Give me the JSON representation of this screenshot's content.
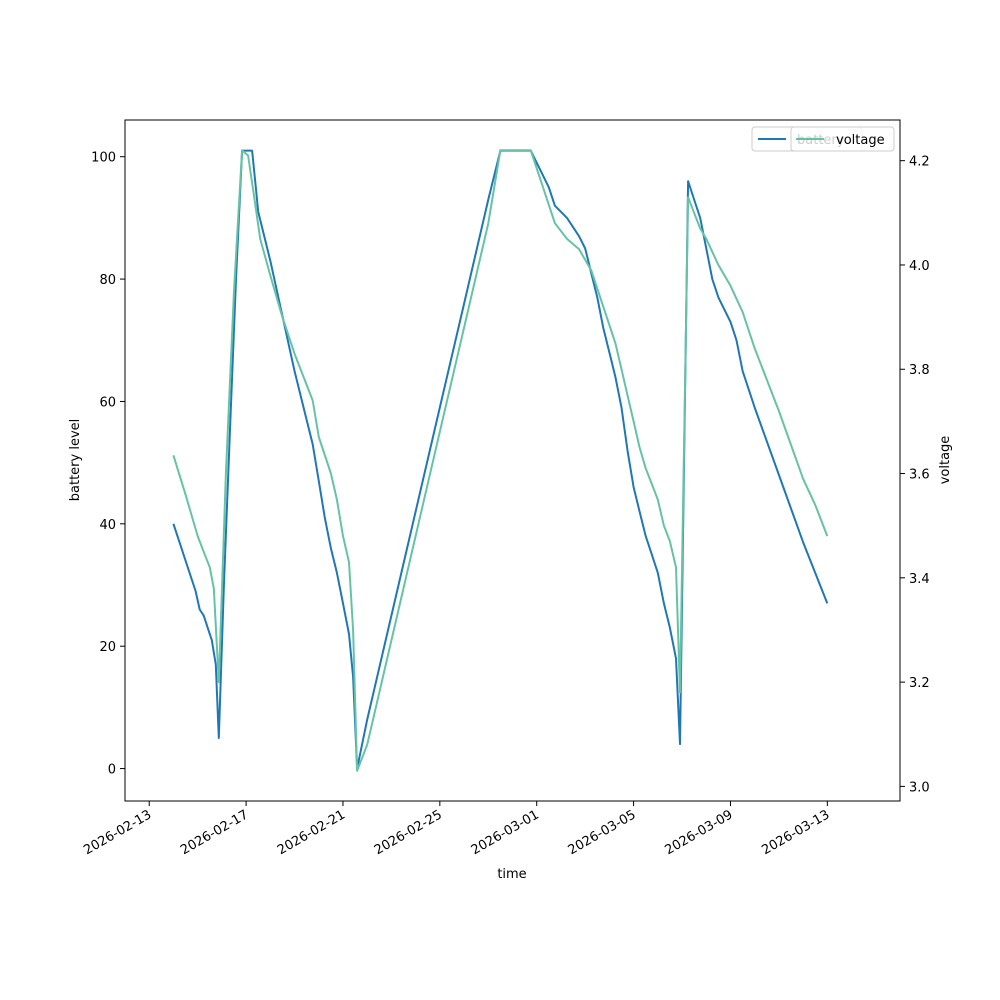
{
  "chart_data": {
    "type": "line",
    "xlabel": "time",
    "ylabel": "battery level",
    "y2label": "voltage",
    "xlim": [
      "2026-02-12",
      "2026-03-16"
    ],
    "ylim": [
      -5.3,
      106
    ],
    "y2lim": [
      2.972,
      4.278
    ],
    "xticks": [
      "2026-02-13",
      "2026-02-17",
      "2026-02-21",
      "2026-02-25",
      "2026-03-01",
      "2026-03-05",
      "2026-03-09",
      "2026-03-13"
    ],
    "yticks": [
      0,
      20,
      40,
      60,
      80,
      100
    ],
    "y2ticks": [
      3.0,
      3.2,
      3.4,
      3.6,
      3.8,
      4.0,
      4.2
    ],
    "legend_position": "upper right",
    "series": [
      {
        "name": "battery",
        "axis": "left",
        "color": "#1f77b4",
        "points": [
          [
            "2026-02-14 00:00",
            40
          ],
          [
            "2026-02-14 06:00",
            37
          ],
          [
            "2026-02-14 12:00",
            34
          ],
          [
            "2026-02-14 22:00",
            29
          ],
          [
            "2026-02-15 02:00",
            26
          ],
          [
            "2026-02-15 06:00",
            25
          ],
          [
            "2026-02-15 10:00",
            23
          ],
          [
            "2026-02-15 14:00",
            21
          ],
          [
            "2026-02-15 18:00",
            17
          ],
          [
            "2026-02-15 21:00",
            5
          ],
          [
            "2026-02-16 02:00",
            30
          ],
          [
            "2026-02-16 08:00",
            55
          ],
          [
            "2026-02-16 14:00",
            80
          ],
          [
            "2026-02-16 20:00",
            101
          ],
          [
            "2026-02-17 06:00",
            101
          ],
          [
            "2026-02-17 09:00",
            96
          ],
          [
            "2026-02-17 12:00",
            91
          ],
          [
            "2026-02-18 00:00",
            83
          ],
          [
            "2026-02-18 12:00",
            74
          ],
          [
            "2026-02-19 00:00",
            65
          ],
          [
            "2026-02-19 12:00",
            57
          ],
          [
            "2026-02-19 18:00",
            53
          ],
          [
            "2026-02-20 00:00",
            47
          ],
          [
            "2026-02-20 06:00",
            41
          ],
          [
            "2026-02-20 12:00",
            36
          ],
          [
            "2026-02-20 18:00",
            32
          ],
          [
            "2026-02-21 00:00",
            27
          ],
          [
            "2026-02-21 06:00",
            22
          ],
          [
            "2026-02-21 10:00",
            15
          ],
          [
            "2026-02-21 14:00",
            0
          ],
          [
            "2026-02-22 00:00",
            8
          ],
          [
            "2026-02-23 00:00",
            25
          ],
          [
            "2026-02-24 00:00",
            42
          ],
          [
            "2026-02-25 00:00",
            59
          ],
          [
            "2026-02-26 00:00",
            76
          ],
          [
            "2026-02-27 00:00",
            93
          ],
          [
            "2026-02-27 12:00",
            101
          ],
          [
            "2026-02-28 00:00",
            101
          ],
          [
            "2026-02-28 18:00",
            101
          ],
          [
            "2026-03-01 06:00",
            97
          ],
          [
            "2026-03-01 12:00",
            95
          ],
          [
            "2026-03-01 18:00",
            92
          ],
          [
            "2026-03-02 06:00",
            90
          ],
          [
            "2026-03-02 18:00",
            87
          ],
          [
            "2026-03-03 00:00",
            85
          ],
          [
            "2026-03-03 06:00",
            81
          ],
          [
            "2026-03-03 12:00",
            77
          ],
          [
            "2026-03-03 18:00",
            72
          ],
          [
            "2026-03-04 00:00",
            68
          ],
          [
            "2026-03-04 06:00",
            64
          ],
          [
            "2026-03-04 12:00",
            59
          ],
          [
            "2026-03-04 18:00",
            52
          ],
          [
            "2026-03-05 00:00",
            46
          ],
          [
            "2026-03-05 06:00",
            42
          ],
          [
            "2026-03-05 12:00",
            38
          ],
          [
            "2026-03-05 18:00",
            35
          ],
          [
            "2026-03-06 00:00",
            32
          ],
          [
            "2026-03-06 06:00",
            27
          ],
          [
            "2026-03-06 12:00",
            23
          ],
          [
            "2026-03-06 18:00",
            18
          ],
          [
            "2026-03-06 22:00",
            4
          ],
          [
            "2026-03-07 06:00",
            96
          ],
          [
            "2026-03-07 12:00",
            93
          ],
          [
            "2026-03-07 18:00",
            90
          ],
          [
            "2026-03-08 00:00",
            85
          ],
          [
            "2026-03-08 06:00",
            80
          ],
          [
            "2026-03-08 12:00",
            77
          ],
          [
            "2026-03-09 00:00",
            73
          ],
          [
            "2026-03-09 06:00",
            70
          ],
          [
            "2026-03-09 12:00",
            65
          ],
          [
            "2026-03-10 00:00",
            59
          ],
          [
            "2026-03-11 00:00",
            48
          ],
          [
            "2026-03-12 00:00",
            37
          ],
          [
            "2026-03-13 00:00",
            27
          ]
        ]
      },
      {
        "name": "voltage",
        "axis": "right",
        "color": "#66c2a5",
        "points": [
          [
            "2026-02-14 00:00",
            3.635
          ],
          [
            "2026-02-14 12:00",
            3.56
          ],
          [
            "2026-02-15 00:00",
            3.48
          ],
          [
            "2026-02-15 06:00",
            3.45
          ],
          [
            "2026-02-15 12:00",
            3.42
          ],
          [
            "2026-02-15 16:00",
            3.38
          ],
          [
            "2026-02-15 21:00",
            3.2
          ],
          [
            "2026-02-16 04:00",
            3.6
          ],
          [
            "2026-02-16 12:00",
            3.95
          ],
          [
            "2026-02-16 20:00",
            4.22
          ],
          [
            "2026-02-17 02:00",
            4.21
          ],
          [
            "2026-02-17 08:00",
            4.13
          ],
          [
            "2026-02-17 14:00",
            4.05
          ],
          [
            "2026-02-18 00:00",
            3.98
          ],
          [
            "2026-02-18 12:00",
            3.9
          ],
          [
            "2026-02-19 00:00",
            3.83
          ],
          [
            "2026-02-19 18:00",
            3.74
          ],
          [
            "2026-02-20 00:00",
            3.67
          ],
          [
            "2026-02-20 12:00",
            3.6
          ],
          [
            "2026-02-20 18:00",
            3.55
          ],
          [
            "2026-02-21 00:00",
            3.48
          ],
          [
            "2026-02-21 06:00",
            3.43
          ],
          [
            "2026-02-21 10:00",
            3.3
          ],
          [
            "2026-02-21 14:00",
            3.03
          ],
          [
            "2026-02-22 00:00",
            3.08
          ],
          [
            "2026-02-23 00:00",
            3.28
          ],
          [
            "2026-02-24 00:00",
            3.48
          ],
          [
            "2026-02-25 00:00",
            3.68
          ],
          [
            "2026-02-26 00:00",
            3.88
          ],
          [
            "2026-02-27 00:00",
            4.08
          ],
          [
            "2026-02-27 12:00",
            4.22
          ],
          [
            "2026-02-28 18:00",
            4.22
          ],
          [
            "2026-03-01 06:00",
            4.15
          ],
          [
            "2026-03-01 18:00",
            4.08
          ],
          [
            "2026-03-02 06:00",
            4.05
          ],
          [
            "2026-03-02 18:00",
            4.03
          ],
          [
            "2026-03-03 06:00",
            3.99
          ],
          [
            "2026-03-03 18:00",
            3.92
          ],
          [
            "2026-03-04 06:00",
            3.85
          ],
          [
            "2026-03-04 12:00",
            3.8
          ],
          [
            "2026-03-04 18:00",
            3.75
          ],
          [
            "2026-03-05 00:00",
            3.7
          ],
          [
            "2026-03-05 06:00",
            3.65
          ],
          [
            "2026-03-05 12:00",
            3.61
          ],
          [
            "2026-03-05 18:00",
            3.58
          ],
          [
            "2026-03-06 00:00",
            3.55
          ],
          [
            "2026-03-06 06:00",
            3.5
          ],
          [
            "2026-03-06 12:00",
            3.47
          ],
          [
            "2026-03-06 18:00",
            3.42
          ],
          [
            "2026-03-06 22:00",
            3.18
          ],
          [
            "2026-03-07 06:00",
            4.13
          ],
          [
            "2026-03-07 12:00",
            4.1
          ],
          [
            "2026-03-07 18:00",
            4.07
          ],
          [
            "2026-03-08 00:00",
            4.05
          ],
          [
            "2026-03-08 12:00",
            4.0
          ],
          [
            "2026-03-09 00:00",
            3.96
          ],
          [
            "2026-03-09 12:00",
            3.91
          ],
          [
            "2026-03-10 00:00",
            3.84
          ],
          [
            "2026-03-11 00:00",
            3.72
          ],
          [
            "2026-03-12 00:00",
            3.59
          ],
          [
            "2026-03-12 12:00",
            3.54
          ],
          [
            "2026-03-13 00:00",
            3.48
          ]
        ]
      }
    ]
  }
}
